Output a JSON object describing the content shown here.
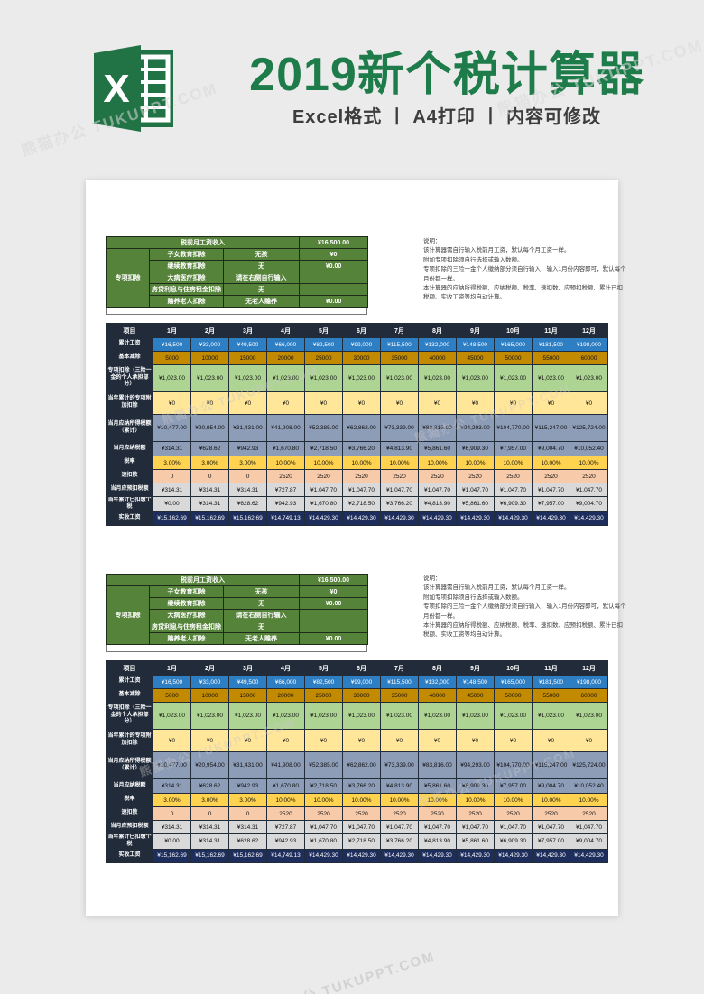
{
  "banner": {
    "title": "2019新个税计算器",
    "subtitle": "Excel格式 丨 A4打印 丨 内容可修改",
    "title_color": "#1e7b4a"
  },
  "watermark": {
    "text": "熊猫办公 TUKUPPT.COM"
  },
  "colors": {
    "accent_green": "#1e7b4a",
    "excel_icon_green": "#217346",
    "input_green": "#56833a",
    "table_header": "#212b3a",
    "row_blue": "#2d7ec3",
    "row_gold": "#c28a00",
    "row_green": "#aed494",
    "row_lightyellow": "#ffe699",
    "row_bluegray": "#8d9cb7",
    "row_yellow": "#ffd34f",
    "row_peach": "#f7cbaa",
    "row_gray": "#d9d9d9",
    "row_navy": "#1d2d5c"
  },
  "calculator": {
    "input_section": {
      "salary_label": "税前月工资收入",
      "salary_value": "¥16,500.00",
      "group_label": "专项扣除",
      "deduction_rows": [
        {
          "label": "子女教育扣除",
          "option": "无孩",
          "amount": "¥0"
        },
        {
          "label": "继续教育扣除",
          "option": "无",
          "amount": "¥0.00"
        },
        {
          "label": "大病医疗扣除",
          "option": "请在右侧自行输入",
          "amount": ""
        },
        {
          "label": "房贷利息与住房租金扣除",
          "option": "无",
          "amount": ""
        },
        {
          "label": "赡养老人扣除",
          "option": "无老人赡养",
          "amount": "¥0.00"
        }
      ]
    },
    "notes": {
      "title": "说明：",
      "lines": [
        "该计算器需自行输入税前月工资，默认每个月工资一样。",
        "附加专项扣除须自行选择或输入数额。",
        "专项扣除的三险一金个人缴纳部分须自行输入，输入1月份内容即可，默认每个月份都一样。",
        "本计算器的应纳所得税额、应纳税额、税率、速扣数、应预扣税额、累计已扣税额、实收工资等均自动计算。"
      ]
    },
    "table": {
      "label_header": "项目",
      "months": [
        "1月",
        "2月",
        "3月",
        "4月",
        "5月",
        "6月",
        "7月",
        "8月",
        "9月",
        "10月",
        "11月",
        "12月"
      ],
      "rows": [
        {
          "label": "累计工资",
          "style": "blue",
          "text": "#ffffff",
          "values": [
            "¥16,500",
            "¥33,000",
            "¥49,500",
            "¥66,000",
            "¥82,500",
            "¥99,000",
            "¥115,500",
            "¥132,000",
            "¥148,500",
            "¥165,000",
            "¥181,500",
            "¥198,000"
          ]
        },
        {
          "label": "基本减除",
          "style": "gold",
          "text": "#111111",
          "values": [
            "5000",
            "10000",
            "15000",
            "20000",
            "25000",
            "30000",
            "35000",
            "40000",
            "45000",
            "50000",
            "55000",
            "60000"
          ]
        },
        {
          "label": "专项扣除（三险一金的个人承担部分）",
          "style": "green",
          "text": "#111111",
          "values": [
            "¥1,023.00",
            "¥1,023.00",
            "¥1,023.00",
            "¥1,023.00",
            "¥1,023.00",
            "¥1,023.00",
            "¥1,023.00",
            "¥1,023.00",
            "¥1,023.00",
            "¥1,023.00",
            "¥1,023.00",
            "¥1,023.00"
          ]
        },
        {
          "label": "当年累计的专项附加扣除",
          "style": "lightyellow",
          "text": "#111111",
          "values": [
            "¥0",
            "¥0",
            "¥0",
            "¥0",
            "¥0",
            "¥0",
            "¥0",
            "¥0",
            "¥0",
            "¥0",
            "¥0",
            "¥0"
          ]
        },
        {
          "label": "当月应纳所得税额（累计）",
          "style": "bluegray",
          "text": "#111111",
          "values": [
            "¥10,477.00",
            "¥20,954.00",
            "¥31,431.00",
            "¥41,908.00",
            "¥52,385.00",
            "¥62,862.00",
            "¥73,339.00",
            "¥83,816.00",
            "¥94,293.00",
            "¥104,770.00",
            "¥115,247.00",
            "¥125,724.00"
          ]
        },
        {
          "label": "当月应纳税额",
          "style": "bluegray",
          "text": "#111111",
          "values": [
            "¥314.31",
            "¥628.62",
            "¥942.93",
            "¥1,670.80",
            "¥2,718.50",
            "¥3,766.20",
            "¥4,813.90",
            "¥5,861.60",
            "¥6,909.30",
            "¥7,957.00",
            "¥9,004.70",
            "¥10,052.40"
          ]
        },
        {
          "label": "税率",
          "style": "yellow",
          "text": "#111111",
          "values": [
            "3.00%",
            "3.00%",
            "3.00%",
            "10.00%",
            "10.00%",
            "10.00%",
            "10.00%",
            "10.00%",
            "10.00%",
            "10.00%",
            "10.00%",
            "10.00%"
          ]
        },
        {
          "label": "速扣数",
          "style": "peach",
          "text": "#111111",
          "values": [
            "0",
            "0",
            "0",
            "2520",
            "2520",
            "2520",
            "2520",
            "2520",
            "2520",
            "2520",
            "2520",
            "2520"
          ]
        },
        {
          "label": "当月应预扣税额",
          "style": "gray",
          "text": "#111111",
          "values": [
            "¥314.31",
            "¥314.31",
            "¥314.31",
            "¥727.87",
            "¥1,047.70",
            "¥1,047.70",
            "¥1,047.70",
            "¥1,047.70",
            "¥1,047.70",
            "¥1,047.70",
            "¥1,047.70",
            "¥1,047.70"
          ]
        },
        {
          "label": "当年累计已扣缴个税",
          "style": "gray",
          "text": "#111111",
          "values": [
            "¥0.00",
            "¥314.31",
            "¥628.62",
            "¥942.93",
            "¥1,670.80",
            "¥2,718.50",
            "¥3,766.20",
            "¥4,813.90",
            "¥5,861.60",
            "¥6,909.30",
            "¥7,957.00",
            "¥9,004.70"
          ]
        },
        {
          "label": "实收工资",
          "style": "navy",
          "text": "#ffffff",
          "values": [
            "¥15,162.69",
            "¥15,162.69",
            "¥15,162.69",
            "¥14,749.13",
            "¥14,429.30",
            "¥14,429.30",
            "¥14,429.30",
            "¥14,429.30",
            "¥14,429.30",
            "¥14,429.30",
            "¥14,429.30",
            "¥14,429.30"
          ]
        }
      ]
    }
  }
}
